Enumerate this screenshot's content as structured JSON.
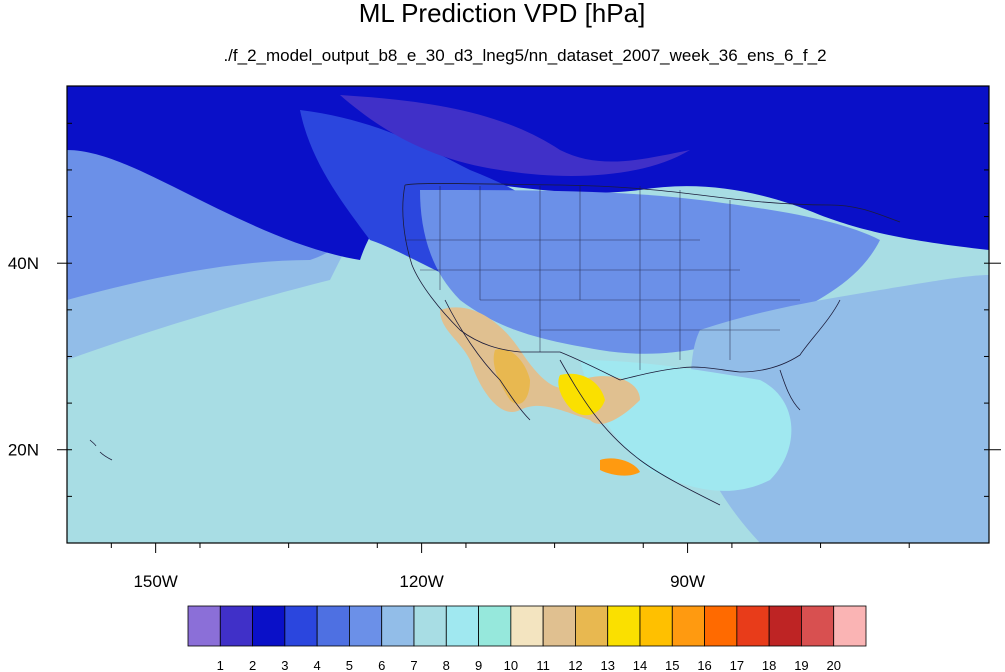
{
  "chart_data": {
    "type": "heatmap",
    "title": "ML Prediction VPD [hPa]",
    "subtitle": "./f_2_model_output_b8_e_30_d3_lneg5/nn_dataset_2007_week_36_ens_6_f_2",
    "map_extent": {
      "lon": [
        -160,
        -56
      ],
      "lat": [
        10,
        59
      ]
    },
    "x_ticks": [
      {
        "lon": -150,
        "label": "150W"
      },
      {
        "lon": -120,
        "label": "120W"
      },
      {
        "lon": -90,
        "label": "90W"
      }
    ],
    "y_ticks": [
      {
        "lat": 40,
        "label": "40N"
      },
      {
        "lat": 20,
        "label": "20N"
      }
    ],
    "colorbar": {
      "labels": [
        "1",
        "2",
        "3",
        "4",
        "5",
        "6",
        "7",
        "8",
        "9",
        "10",
        "11",
        "12",
        "13",
        "14",
        "15",
        "16",
        "17",
        "18",
        "19",
        "20"
      ],
      "colors": [
        "#8b6fd8",
        "#4030c8",
        "#0a10c8",
        "#2b46de",
        "#4e70e2",
        "#6b90e8",
        "#92bde8",
        "#a8dde4",
        "#a0e8f0",
        "#96e8dc",
        "#f3e4c0",
        "#e0c090",
        "#e8b850",
        "#fae000",
        "#ffc000",
        "#ff9a10",
        "#ff6a00",
        "#e83c1a",
        "#be2424",
        "#d85050",
        "#fab4b4"
      ]
    },
    "fields": {
      "ocean_far": 7,
      "ocean_mid": 6,
      "ocean_near": 5,
      "canada_north": 2,
      "pnw": 3,
      "us_interior": 5,
      "southeast": 6,
      "gulf": 8,
      "mexico_high": 13
    },
    "grid": false,
    "legend_position": "bottom"
  }
}
